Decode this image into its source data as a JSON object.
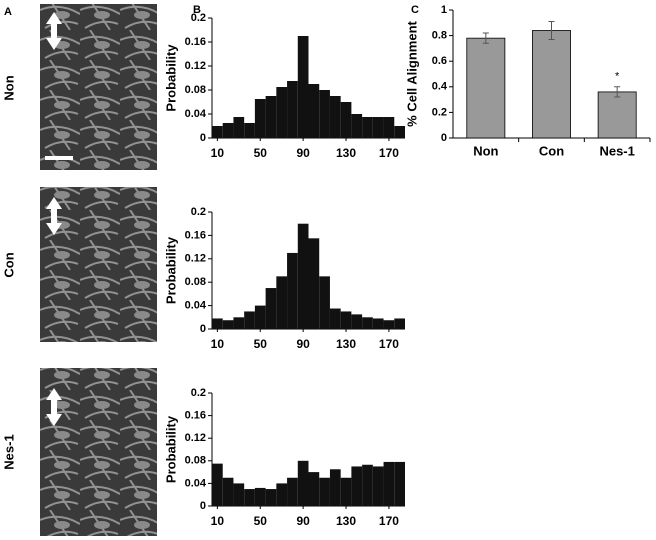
{
  "figure": {
    "panel_labels": [
      "A",
      "B",
      "C"
    ],
    "row_labels": [
      "Non",
      "Con",
      "Nes-1"
    ]
  },
  "chart_data": [
    {
      "type": "histogram",
      "y_label": "Probability",
      "bins": [
        5,
        15,
        25,
        35,
        45,
        55,
        65,
        75,
        85,
        95,
        105,
        115,
        125,
        135,
        145,
        155,
        165,
        175,
        185
      ],
      "values": [
        0.02,
        0.025,
        0.035,
        0.025,
        0.065,
        0.07,
        0.085,
        0.095,
        0.17,
        0.09,
        0.08,
        0.07,
        0.06,
        0.04,
        0.035,
        0.035,
        0.035,
        0.02
      ],
      "color": "#111111",
      "xlim": [
        5,
        185
      ],
      "xticks": [
        10,
        50,
        90,
        130,
        170
      ],
      "ylim": [
        0,
        0.2
      ],
      "yticks": [
        0,
        0.04,
        0.08,
        0.12,
        0.16,
        0.2
      ]
    },
    {
      "type": "histogram",
      "y_label": "Probability",
      "bins": [
        5,
        15,
        25,
        35,
        45,
        55,
        65,
        75,
        85,
        95,
        105,
        115,
        125,
        135,
        145,
        155,
        165,
        175,
        185
      ],
      "values": [
        0.018,
        0.015,
        0.02,
        0.03,
        0.04,
        0.07,
        0.09,
        0.13,
        0.18,
        0.155,
        0.09,
        0.035,
        0.03,
        0.025,
        0.02,
        0.018,
        0.015,
        0.018
      ],
      "color": "#111111",
      "xlim": [
        5,
        185
      ],
      "xticks": [
        10,
        50,
        90,
        130,
        170
      ],
      "ylim": [
        0,
        0.2
      ],
      "yticks": [
        0,
        0.04,
        0.08,
        0.12,
        0.16,
        0.2
      ]
    },
    {
      "type": "histogram",
      "y_label": "Probability",
      "bins": [
        5,
        15,
        25,
        35,
        45,
        55,
        65,
        75,
        85,
        95,
        105,
        115,
        125,
        135,
        145,
        155,
        165,
        175,
        185
      ],
      "values": [
        0.075,
        0.05,
        0.04,
        0.03,
        0.032,
        0.03,
        0.04,
        0.05,
        0.08,
        0.06,
        0.05,
        0.065,
        0.05,
        0.07,
        0.073,
        0.07,
        0.078,
        0.078
      ],
      "color": "#111111",
      "xlim": [
        5,
        185
      ],
      "xticks": [
        10,
        50,
        90,
        130,
        170
      ],
      "ylim": [
        0,
        0.2
      ],
      "yticks": [
        0,
        0.04,
        0.08,
        0.12,
        0.16,
        0.2
      ]
    },
    {
      "type": "bar",
      "y_label": "% Cell Alignment",
      "categories": [
        "Non",
        "Con",
        "Nes-1"
      ],
      "values": [
        0.78,
        0.84,
        0.36
      ],
      "errors": [
        0.04,
        0.07,
        0.04
      ],
      "color": "#999999",
      "ylim": [
        0,
        1
      ],
      "yticks": [
        0,
        0.2,
        0.4,
        0.6,
        0.8,
        1
      ],
      "annotations": [
        {
          "text": "*",
          "category": "Nes-1"
        }
      ]
    }
  ]
}
